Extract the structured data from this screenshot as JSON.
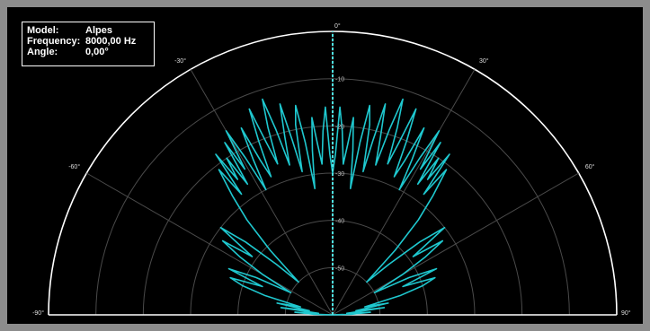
{
  "info": {
    "model_label": "Model:",
    "model_value": "Alpes",
    "frequency_label": "Frequency:",
    "frequency_value": "8000,00 Hz",
    "angle_label": "Angle:",
    "angle_value": "0,00°"
  },
  "colors": {
    "background": "#000000",
    "frame": "#8c8c8c",
    "grid": "#4a4a4a",
    "outline": "#ffffff",
    "trace": "#1fc8cf",
    "cursor": "#4ee3e3"
  },
  "chart_data": {
    "type": "polar",
    "angle_ticks": [
      {
        "angle": -90,
        "label": "-90°"
      },
      {
        "angle": -60,
        "label": "-60°"
      },
      {
        "angle": -30,
        "label": "-30°"
      },
      {
        "angle": 0,
        "label": "0°"
      },
      {
        "angle": 30,
        "label": "30°"
      },
      {
        "angle": 60,
        "label": "60°"
      },
      {
        "angle": 90,
        "label": "90°"
      }
    ],
    "radial_ticks": [
      {
        "db": 0,
        "label": ""
      },
      {
        "db": -10,
        "label": "-10"
      },
      {
        "db": -20,
        "label": "-20"
      },
      {
        "db": -30,
        "label": "-30"
      },
      {
        "db": -40,
        "label": "-40"
      },
      {
        "db": -50,
        "label": "-50"
      }
    ],
    "r_range": [
      -60,
      0
    ],
    "cursor_angle": 0,
    "series": [
      {
        "points": [
          [
            -90,
            -60
          ],
          [
            -88,
            -56
          ],
          [
            -86,
            -52
          ],
          [
            -84,
            -57
          ],
          [
            -82,
            -49
          ],
          [
            -80,
            -55
          ],
          [
            -78,
            -48
          ],
          [
            -76,
            -53
          ],
          [
            -74,
            -45
          ],
          [
            -72,
            -40
          ],
          [
            -70,
            -37
          ],
          [
            -68,
            -44
          ],
          [
            -66,
            -36
          ],
          [
            -64,
            -42
          ],
          [
            -62,
            -50
          ],
          [
            -60,
            -43
          ],
          [
            -58,
            -37
          ],
          [
            -56,
            -32
          ],
          [
            -54,
            -39
          ],
          [
            -52,
            -30
          ],
          [
            -50,
            -36
          ],
          [
            -48,
            -44
          ],
          [
            -46,
            -50
          ],
          [
            -44,
            -41
          ],
          [
            -42,
            -33
          ],
          [
            -40,
            -27
          ],
          [
            -38,
            -21
          ],
          [
            -37,
            -28
          ],
          [
            -36,
            -18
          ],
          [
            -35,
            -25
          ],
          [
            -34,
            -20
          ],
          [
            -33,
            -27
          ],
          [
            -32,
            -17
          ],
          [
            -31,
            -24
          ],
          [
            -30,
            -15
          ],
          [
            -29,
            -22
          ],
          [
            -28,
            -30
          ],
          [
            -27,
            -23
          ],
          [
            -26,
            -16
          ],
          [
            -25,
            -24
          ],
          [
            -24,
            -28
          ],
          [
            -23,
            -20
          ],
          [
            -22,
            -13
          ],
          [
            -21,
            -21
          ],
          [
            -20,
            -26
          ],
          [
            -19,
            -18
          ],
          [
            -18,
            -12
          ],
          [
            -17,
            -19
          ],
          [
            -16,
            -27
          ],
          [
            -15,
            -21
          ],
          [
            -14,
            -14
          ],
          [
            -13,
            -22
          ],
          [
            -12,
            -29
          ],
          [
            -11,
            -19
          ],
          [
            -10,
            -15
          ],
          [
            -9,
            -23
          ],
          [
            -8,
            -33
          ],
          [
            -7,
            -25
          ],
          [
            -6,
            -18
          ],
          [
            -5,
            -24
          ],
          [
            -4,
            -28
          ],
          [
            -3,
            -21
          ],
          [
            -2,
            -16
          ],
          [
            -1,
            -26
          ],
          [
            0,
            -30
          ],
          [
            1,
            -26
          ],
          [
            2,
            -16
          ],
          [
            3,
            -21
          ],
          [
            4,
            -28
          ],
          [
            5,
            -24
          ],
          [
            6,
            -18
          ],
          [
            7,
            -25
          ],
          [
            8,
            -33
          ],
          [
            9,
            -23
          ],
          [
            10,
            -15
          ],
          [
            11,
            -19
          ],
          [
            12,
            -29
          ],
          [
            13,
            -22
          ],
          [
            14,
            -14
          ],
          [
            15,
            -21
          ],
          [
            16,
            -27
          ],
          [
            17,
            -19
          ],
          [
            18,
            -12
          ],
          [
            19,
            -18
          ],
          [
            20,
            -26
          ],
          [
            21,
            -21
          ],
          [
            22,
            -13
          ],
          [
            23,
            -20
          ],
          [
            24,
            -28
          ],
          [
            25,
            -24
          ],
          [
            26,
            -16
          ],
          [
            27,
            -23
          ],
          [
            28,
            -30
          ],
          [
            29,
            -22
          ],
          [
            30,
            -15
          ],
          [
            31,
            -24
          ],
          [
            32,
            -17
          ],
          [
            33,
            -27
          ],
          [
            34,
            -20
          ],
          [
            35,
            -25
          ],
          [
            36,
            -18
          ],
          [
            37,
            -28
          ],
          [
            38,
            -21
          ],
          [
            40,
            -27
          ],
          [
            42,
            -33
          ],
          [
            44,
            -41
          ],
          [
            46,
            -50
          ],
          [
            48,
            -44
          ],
          [
            50,
            -36
          ],
          [
            52,
            -30
          ],
          [
            54,
            -39
          ],
          [
            56,
            -32
          ],
          [
            58,
            -37
          ],
          [
            60,
            -43
          ],
          [
            62,
            -50
          ],
          [
            64,
            -42
          ],
          [
            66,
            -36
          ],
          [
            68,
            -44
          ],
          [
            70,
            -37
          ],
          [
            72,
            -40
          ],
          [
            74,
            -45
          ],
          [
            76,
            -53
          ],
          [
            78,
            -48
          ],
          [
            80,
            -55
          ],
          [
            82,
            -49
          ],
          [
            84,
            -57
          ],
          [
            86,
            -52
          ],
          [
            88,
            -56
          ],
          [
            90,
            -60
          ]
        ]
      }
    ]
  }
}
